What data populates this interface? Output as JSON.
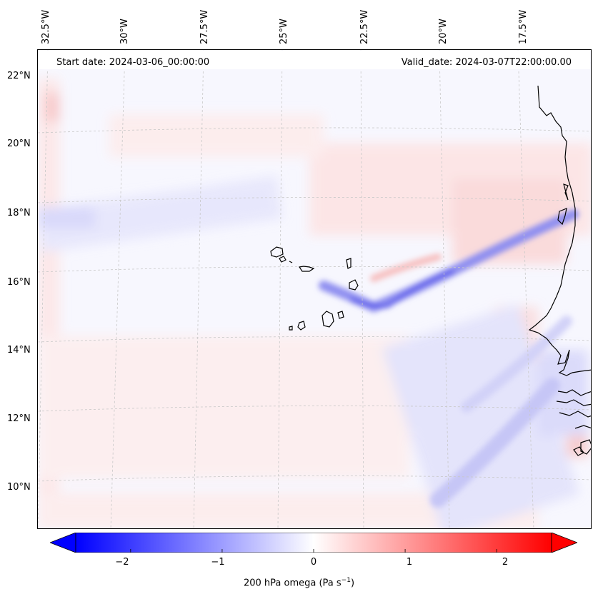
{
  "header": {
    "start_date": "Start date: 2024-03-06_00:00:00",
    "valid_date": "Valid_date: 2024-03-07T22:00:00.00"
  },
  "longitude_labels": [
    "32.5°W",
    "30°W",
    "27.5°W",
    "25°W",
    "22.5°W",
    "20°W",
    "17.5°W"
  ],
  "latitude_labels": [
    "22°N",
    "20°N",
    "18°N",
    "16°N",
    "14°N",
    "12°N",
    "10°N"
  ],
  "colorbar": {
    "ticks": [
      "−2",
      "−1",
      "0",
      "1",
      "2"
    ],
    "tick_values": [
      -2,
      -1,
      0,
      1,
      2
    ],
    "range": [
      -2.6,
      2.6
    ],
    "extend": "both",
    "cmap": "bwr",
    "title_main": "200 hPa omega (Pa s",
    "title_exp": "−1",
    "title_close": ")"
  },
  "colors": {
    "negative": "#0000ff",
    "neutral": "#ffffff",
    "positive": "#ff0000",
    "coastline": "#000000",
    "gridline": "#c8c8c8"
  }
}
